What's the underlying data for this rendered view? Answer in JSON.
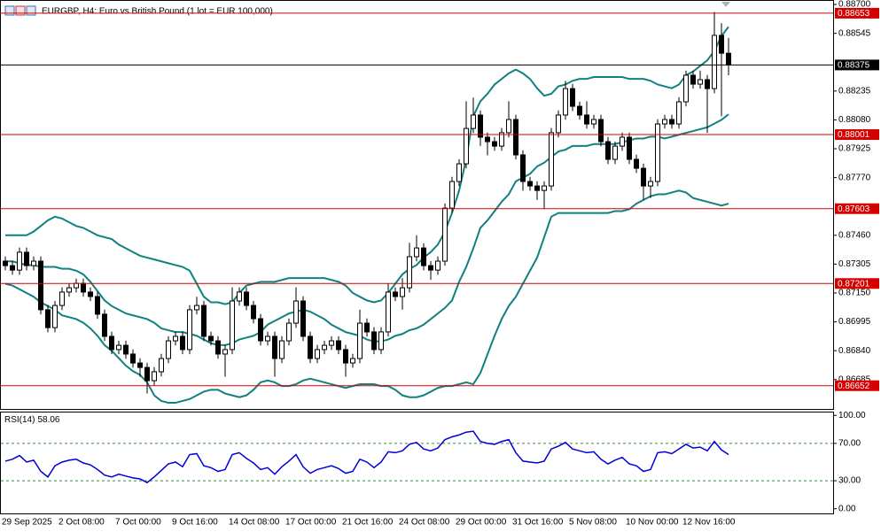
{
  "chart_data": {
    "type": "candlestick",
    "title": "EURGBP, H4:  Euro vs British Pound (1 lot = EUR 100,000)",
    "categories": [
      "29 Sep 2025",
      null,
      null,
      null,
      null,
      null,
      null,
      null,
      "2 Oct 08:00",
      null,
      null,
      null,
      null,
      null,
      null,
      null,
      "7 Oct 00:00",
      null,
      null,
      null,
      null,
      null,
      null,
      null,
      "9 Oct 16:00",
      null,
      null,
      null,
      null,
      null,
      null,
      null,
      "14 Oct 08:00",
      null,
      null,
      null,
      null,
      null,
      null,
      null,
      "17 Oct 00:00",
      null,
      null,
      null,
      null,
      null,
      null,
      null,
      "21 Oct 16:00",
      null,
      null,
      null,
      null,
      null,
      null,
      null,
      "24 Oct 08:00",
      null,
      null,
      null,
      null,
      null,
      null,
      null,
      "29 Oct 00:00",
      null,
      null,
      null,
      null,
      null,
      null,
      null,
      "31 Oct 16:00",
      null,
      null,
      null,
      null,
      null,
      null,
      null,
      "5 Nov 08:00",
      null,
      null,
      null,
      null,
      null,
      null,
      null,
      "10 Nov 00:00",
      null,
      null,
      null,
      null,
      null,
      null,
      null,
      "12 Nov 16:00",
      null,
      null,
      null,
      null,
      null,
      null
    ],
    "open": [
      0.87321,
      0.87297,
      0.87273,
      0.87369,
      0.87297,
      0.87321,
      0.8706,
      0.86964,
      0.87083,
      0.87155,
      0.87178,
      0.87202,
      0.87155,
      0.87131,
      0.87036,
      0.86917,
      0.86846,
      0.86869,
      0.86822,
      0.86774,
      0.8675,
      0.86679,
      0.86727,
      0.86798,
      0.86893,
      0.86917,
      0.86846,
      0.8706,
      0.87083,
      0.86917,
      0.86893,
      0.86822,
      0.86846,
      0.87107,
      0.87155,
      0.87083,
      0.87012,
      0.86893,
      0.86917,
      0.86798,
      0.86893,
      0.86988,
      0.87107,
      0.86917,
      0.86798,
      0.86846,
      0.86869,
      0.86893,
      0.86846,
      0.86774,
      0.86798,
      0.86988,
      0.86941,
      0.86846,
      0.86941,
      0.87155,
      0.87131,
      0.87178,
      0.87345,
      0.87392,
      0.87297,
      0.87273,
      0.87321,
      0.87606,
      0.87749,
      0.87844,
      0.88034,
      0.88106,
      0.87987,
      0.87963,
      0.87939,
      0.88011,
      0.88082,
      0.87892,
      0.87749,
      0.87725,
      0.87701,
      0.87725,
      0.88011,
      0.88106,
      0.88248,
      0.88153,
      0.88106,
      0.88058,
      0.88082,
      0.87963,
      0.87868,
      0.87939,
      0.87987,
      0.87868,
      0.8782,
      0.87725,
      0.87749,
      0.88058,
      0.88082,
      0.88058,
      0.88177,
      0.8832,
      0.88272,
      0.88296,
      0.88248,
      0.88534,
      0.88438
    ],
    "high": [
      0.87346,
      0.87322,
      0.87394,
      0.87394,
      0.87346,
      0.87346,
      0.87085,
      0.87108,
      0.8718,
      0.87203,
      0.87227,
      0.87227,
      0.8718,
      0.87156,
      0.87061,
      0.86942,
      0.86894,
      0.86894,
      0.86847,
      0.86799,
      0.86775,
      0.86752,
      0.86823,
      0.86918,
      0.86942,
      0.86942,
      0.87085,
      0.8713,
      0.87108,
      0.86942,
      0.86918,
      0.86871,
      0.8718,
      0.8718,
      0.8718,
      0.87108,
      0.87037,
      0.86942,
      0.86942,
      0.86918,
      0.87013,
      0.8718,
      0.87132,
      0.86942,
      0.86871,
      0.86894,
      0.86918,
      0.86918,
      0.86871,
      0.86823,
      0.8706,
      0.87013,
      0.86966,
      0.86966,
      0.87202,
      0.8718,
      0.8723,
      0.8742,
      0.8746,
      0.87417,
      0.87322,
      0.87346,
      0.87631,
      0.87774,
      0.87869,
      0.8818,
      0.882,
      0.88131,
      0.88012,
      0.87988,
      0.88036,
      0.8818,
      0.88107,
      0.87917,
      0.87774,
      0.8775,
      0.8775,
      0.88036,
      0.88131,
      0.8829,
      0.88273,
      0.88178,
      0.8818,
      0.88107,
      0.88107,
      0.87988,
      0.87964,
      0.88012,
      0.88012,
      0.87893,
      0.87845,
      0.87774,
      0.88083,
      0.88107,
      0.88107,
      0.88202,
      0.88345,
      0.88345,
      0.88345,
      0.88321,
      0.8866,
      0.886,
      0.8852
    ],
    "low": [
      0.87272,
      0.87248,
      0.87248,
      0.87272,
      0.87272,
      0.87035,
      0.86939,
      0.86939,
      0.87058,
      0.8713,
      0.87153,
      0.8713,
      0.87106,
      0.87011,
      0.86892,
      0.86821,
      0.86821,
      0.86797,
      0.86749,
      0.867,
      0.8661,
      0.86654,
      0.86702,
      0.86773,
      0.86868,
      0.86821,
      0.86821,
      0.87035,
      0.86892,
      0.86868,
      0.86797,
      0.867,
      0.86821,
      0.87082,
      0.87058,
      0.86987,
      0.86868,
      0.86868,
      0.867,
      0.86773,
      0.86868,
      0.86963,
      0.86892,
      0.86773,
      0.86773,
      0.86821,
      0.86844,
      0.86821,
      0.867,
      0.86749,
      0.86773,
      0.86916,
      0.86821,
      0.86821,
      0.86916,
      0.87106,
      0.8706,
      0.87153,
      0.8732,
      0.87272,
      0.8722,
      0.87248,
      0.87296,
      0.87581,
      0.87724,
      0.87819,
      0.88009,
      0.8794,
      0.8789,
      0.87914,
      0.87914,
      0.87986,
      0.87867,
      0.877,
      0.877,
      0.8765,
      0.876,
      0.877,
      0.87986,
      0.88081,
      0.88128,
      0.88081,
      0.88033,
      0.88033,
      0.87938,
      0.87843,
      0.87843,
      0.87914,
      0.87843,
      0.87795,
      0.8765,
      0.8766,
      0.87724,
      0.88033,
      0.88033,
      0.88033,
      0.88152,
      0.88247,
      0.88247,
      0.8801,
      0.88223,
      0.881,
      0.8832
    ],
    "close": [
      0.87297,
      0.87273,
      0.87369,
      0.87297,
      0.87321,
      0.8706,
      0.86964,
      0.87083,
      0.87155,
      0.87178,
      0.87202,
      0.87155,
      0.87131,
      0.87036,
      0.86917,
      0.86846,
      0.86869,
      0.86822,
      0.86774,
      0.8675,
      0.86679,
      0.86727,
      0.86798,
      0.86893,
      0.86917,
      0.86846,
      0.8706,
      0.87083,
      0.86917,
      0.86893,
      0.86822,
      0.86846,
      0.87107,
      0.87155,
      0.87083,
      0.87012,
      0.86893,
      0.86917,
      0.86798,
      0.86893,
      0.86988,
      0.87107,
      0.86917,
      0.86798,
      0.86846,
      0.86869,
      0.86893,
      0.86846,
      0.86774,
      0.86798,
      0.86988,
      0.86941,
      0.86846,
      0.86941,
      0.87155,
      0.87131,
      0.87178,
      0.87345,
      0.87392,
      0.87297,
      0.87273,
      0.87321,
      0.87606,
      0.87749,
      0.87844,
      0.88034,
      0.88106,
      0.87987,
      0.87963,
      0.87939,
      0.88011,
      0.88082,
      0.87892,
      0.87749,
      0.87725,
      0.87701,
      0.87725,
      0.88011,
      0.88106,
      0.88248,
      0.88153,
      0.88106,
      0.88058,
      0.88082,
      0.87963,
      0.87868,
      0.87939,
      0.87987,
      0.87868,
      0.8782,
      0.87725,
      0.87749,
      0.88058,
      0.88082,
      0.88058,
      0.88177,
      0.8832,
      0.88272,
      0.88296,
      0.88248,
      0.88534,
      0.88438,
      0.88375
    ],
    "up_color": "#ffffff",
    "down_color": "#000000",
    "bands": {
      "color": "#108080",
      "upper": [
        0.8746,
        0.8746,
        0.8746,
        0.8746,
        0.8748,
        0.8751,
        0.8754,
        0.8756,
        0.8755,
        0.8753,
        0.8751,
        0.875,
        0.8748,
        0.8746,
        0.8745,
        0.8744,
        0.8741,
        0.8739,
        0.8737,
        0.8735,
        0.8734,
        0.8733,
        0.8732,
        0.8731,
        0.873,
        0.8729,
        0.8727,
        0.872,
        0.8713,
        0.871,
        0.871,
        0.8709,
        0.871,
        0.8715,
        0.8719,
        0.872,
        0.8721,
        0.8721,
        0.8721,
        0.8722,
        0.8723,
        0.8723,
        0.8723,
        0.8723,
        0.8723,
        0.8723,
        0.8722,
        0.8721,
        0.8719,
        0.8715,
        0.8713,
        0.8711,
        0.871,
        0.8711,
        0.8715,
        0.872,
        0.8725,
        0.8728,
        0.873,
        0.8734,
        0.8737,
        0.8741,
        0.8748,
        0.8758,
        0.877,
        0.8787,
        0.881,
        0.8818,
        0.8822,
        0.8827,
        0.883,
        0.8833,
        0.8835,
        0.8833,
        0.883,
        0.8825,
        0.8821,
        0.8822,
        0.8826,
        0.8827,
        0.8829,
        0.883,
        0.883,
        0.8831,
        0.8831,
        0.8831,
        0.8831,
        0.8831,
        0.883,
        0.883,
        0.883,
        0.8829,
        0.8827,
        0.8826,
        0.8825,
        0.8827,
        0.8832,
        0.8834,
        0.8837,
        0.884,
        0.8845,
        0.8853,
        0.8858
      ],
      "middle": [
        0.8732,
        0.8732,
        0.8731,
        0.873,
        0.873,
        0.8729,
        0.8729,
        0.8729,
        0.8728,
        0.8728,
        0.8727,
        0.8725,
        0.8721,
        0.8716,
        0.8711,
        0.8708,
        0.8706,
        0.8704,
        0.8703,
        0.8702,
        0.8701,
        0.8699,
        0.8696,
        0.8695,
        0.8694,
        0.8694,
        0.8693,
        0.8692,
        0.869,
        0.8688,
        0.8687,
        0.8687,
        0.8688,
        0.869,
        0.8691,
        0.8692,
        0.8694,
        0.8698,
        0.87,
        0.8702,
        0.8704,
        0.8705,
        0.8706,
        0.8705,
        0.8703,
        0.8701,
        0.8698,
        0.8696,
        0.8694,
        0.8693,
        0.8692,
        0.869,
        0.8689,
        0.8689,
        0.869,
        0.8692,
        0.8693,
        0.8695,
        0.8696,
        0.8698,
        0.8701,
        0.8704,
        0.8707,
        0.8711,
        0.8721,
        0.8729,
        0.8739,
        0.875,
        0.8754,
        0.8759,
        0.8764,
        0.8768,
        0.8775,
        0.8777,
        0.8779,
        0.8783,
        0.8785,
        0.8788,
        0.8791,
        0.8792,
        0.8794,
        0.8794,
        0.8794,
        0.8795,
        0.8795,
        0.8795,
        0.8795,
        0.8796,
        0.8797,
        0.8798,
        0.8798,
        0.8799,
        0.8799,
        0.8798,
        0.8799,
        0.88,
        0.8801,
        0.8802,
        0.8803,
        0.8804,
        0.8806,
        0.8808,
        0.8811
      ],
      "lower": [
        0.872,
        0.8719,
        0.8717,
        0.8715,
        0.8713,
        0.871,
        0.8708,
        0.8706,
        0.8703,
        0.8702,
        0.8701,
        0.8699,
        0.8696,
        0.8692,
        0.8687,
        0.8684,
        0.868,
        0.8676,
        0.8673,
        0.8671,
        0.8667,
        0.866,
        0.8657,
        0.8656,
        0.8656,
        0.8657,
        0.8658,
        0.866,
        0.8662,
        0.8663,
        0.8663,
        0.8661,
        0.866,
        0.8659,
        0.866,
        0.8663,
        0.8667,
        0.8668,
        0.8667,
        0.8665,
        0.8665,
        0.8666,
        0.8668,
        0.8669,
        0.8668,
        0.8667,
        0.8666,
        0.8665,
        0.8664,
        0.8665,
        0.8666,
        0.8666,
        0.8666,
        0.8665,
        0.8665,
        0.8663,
        0.866,
        0.8659,
        0.8659,
        0.866,
        0.8662,
        0.8664,
        0.8665,
        0.8665,
        0.8666,
        0.8667,
        0.8666,
        0.8672,
        0.8682,
        0.8692,
        0.8701,
        0.8708,
        0.8713,
        0.872,
        0.8727,
        0.8734,
        0.8745,
        0.8756,
        0.8758,
        0.8758,
        0.8758,
        0.8758,
        0.8758,
        0.8758,
        0.8758,
        0.8758,
        0.8759,
        0.8759,
        0.876,
        0.8763,
        0.8765,
        0.8767,
        0.8768,
        0.8768,
        0.8769,
        0.877,
        0.8769,
        0.8766,
        0.8765,
        0.8764,
        0.8763,
        0.8762,
        0.8763
      ]
    },
    "ylim": [
      0.86527,
      0.88724
    ],
    "yticks": [
      {
        "value": 0.887,
        "label": "0.88700"
      },
      {
        "value": 0.88545,
        "label": "0.88545"
      },
      {
        "value": 0.88235,
        "label": "0.88235"
      },
      {
        "value": 0.8808,
        "label": "0.88080"
      },
      {
        "value": 0.87925,
        "label": "0.87925"
      },
      {
        "value": 0.8777,
        "label": "0.87770"
      },
      {
        "value": 0.8746,
        "label": "0.87460"
      },
      {
        "value": 0.87305,
        "label": "0.87305"
      },
      {
        "value": 0.8715,
        "label": "0.87150"
      },
      {
        "value": 0.86995,
        "label": "0.86995"
      },
      {
        "value": 0.8684,
        "label": "0.86840"
      },
      {
        "value": 0.86685,
        "label": "0.86685"
      }
    ],
    "grid": false,
    "hlines": [
      0.88653,
      0.88001,
      0.87603,
      0.87201,
      0.86652
    ],
    "hline_color": "#d40000",
    "last_line_color": "#000000",
    "rsi": {
      "name": "RSI(14)",
      "color": "#0000d8",
      "level_color": "#3a8a3a",
      "values": [
        51,
        53,
        57,
        50,
        52,
        40,
        34,
        46,
        50,
        52,
        53,
        49,
        47,
        42,
        36,
        34,
        37,
        35,
        33,
        32,
        28,
        34,
        41,
        48,
        50,
        45,
        58,
        59,
        46,
        44,
        40,
        42,
        58,
        60,
        54,
        49,
        42,
        44,
        37,
        45,
        51,
        58,
        45,
        38,
        42,
        44,
        46,
        43,
        38,
        40,
        53,
        50,
        44,
        50,
        61,
        60,
        62,
        69,
        71,
        64,
        62,
        65,
        74,
        77,
        79,
        82,
        83,
        72,
        70,
        69,
        72,
        74,
        60,
        51,
        50,
        49,
        51,
        64,
        67,
        71,
        64,
        62,
        60,
        61,
        53,
        48,
        52,
        55,
        48,
        46,
        40,
        42,
        60,
        61,
        59,
        64,
        69,
        65,
        66,
        62,
        72,
        63,
        58.06
      ],
      "ylim": [
        -5,
        104
      ],
      "yticks": [
        {
          "value": 100,
          "label": "100.00"
        },
        {
          "value": 70,
          "label": "70.00"
        },
        {
          "value": 30,
          "label": "30.00"
        },
        {
          "value": 0,
          "label": "0.00"
        }
      ],
      "levels": [
        70,
        30
      ]
    }
  }
}
